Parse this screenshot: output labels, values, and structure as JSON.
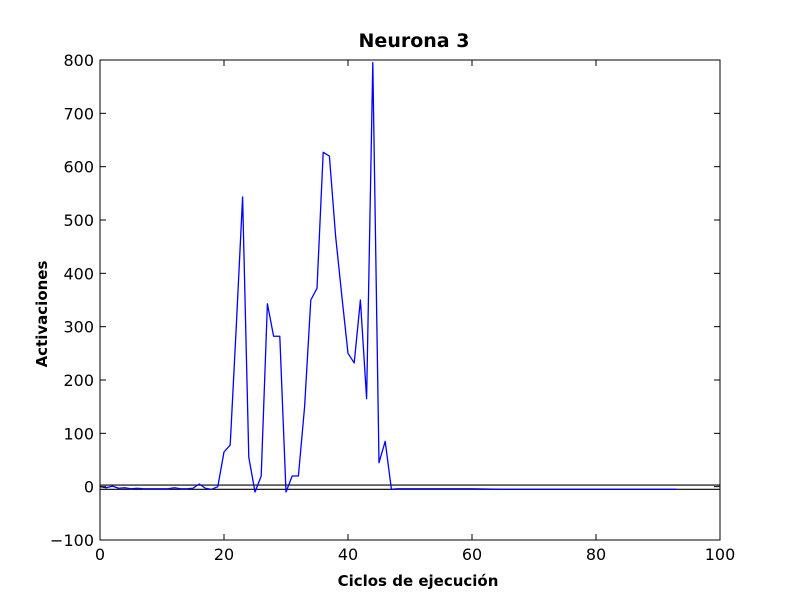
{
  "chart_data": {
    "type": "line",
    "title": "Neurona 3",
    "xlabel": "Ciclos de ejecución",
    "ylabel": "Activaciones",
    "xlim": [
      0,
      100
    ],
    "ylim": [
      -100,
      800
    ],
    "xticks": [
      0,
      20,
      40,
      60,
      80,
      100
    ],
    "yticks": [
      -100,
      0,
      100,
      200,
      300,
      400,
      500,
      600,
      700,
      800
    ],
    "xtick_labels": [
      "0",
      "20",
      "40",
      "60",
      "80",
      "100"
    ],
    "ytick_labels": [
      "−100",
      "0",
      "100",
      "200",
      "300",
      "400",
      "500",
      "600",
      "700",
      "800"
    ],
    "grid": false,
    "line_color": "#0000ff",
    "hlines": [
      {
        "y": 3,
        "color": "#000000"
      },
      {
        "y": -5,
        "color": "#000000"
      }
    ],
    "series": [
      {
        "color": "#0000ff",
        "x": [
          0,
          1,
          2,
          3,
          4,
          5,
          6,
          7,
          8,
          9,
          10,
          11,
          12,
          13,
          14,
          15,
          16,
          17,
          18,
          19,
          20,
          21,
          22,
          23,
          24,
          25,
          26,
          27,
          28,
          29,
          30,
          31,
          32,
          33,
          34,
          35,
          36,
          37,
          38,
          39,
          40,
          41,
          42,
          43,
          44,
          45,
          46,
          47,
          48,
          50,
          55,
          60,
          65,
          70,
          75,
          80,
          85,
          90,
          93
        ],
        "y": [
          0,
          -2,
          1,
          -3,
          -2,
          -4,
          -3,
          -4,
          -4,
          -4,
          -4,
          -4,
          -2,
          -4,
          -4,
          -3,
          5,
          -3,
          -5,
          0,
          65,
          78,
          305,
          543,
          55,
          -10,
          20,
          343,
          282,
          282,
          -10,
          20,
          20,
          150,
          350,
          372,
          627,
          620,
          470,
          358,
          250,
          232,
          350,
          165,
          795,
          45,
          85,
          -5,
          -4,
          -4,
          -4,
          -4,
          -5,
          -5,
          -5,
          -5,
          -5,
          -5,
          -5
        ]
      }
    ]
  }
}
